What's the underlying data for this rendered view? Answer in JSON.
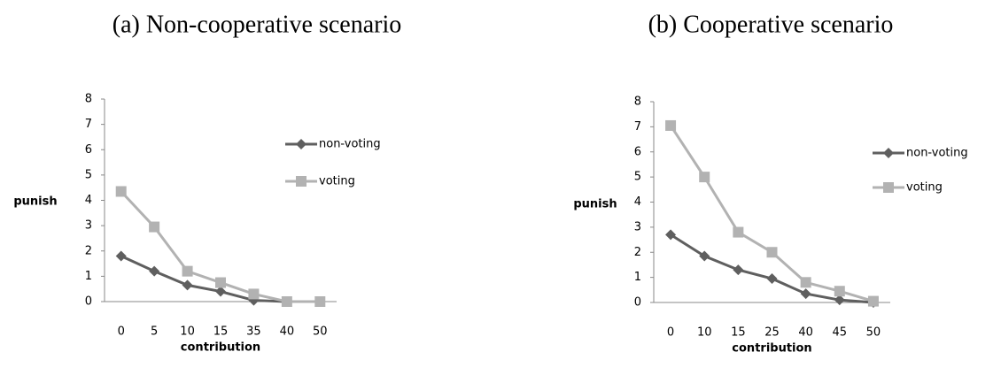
{
  "chart_data": [
    {
      "type": "line",
      "title": "(a) Non-cooperative scenario",
      "x_label": "contribution",
      "y_label": "punish",
      "categories": [
        "0",
        "5",
        "10",
        "15",
        "35",
        "40",
        "50"
      ],
      "ylim": [
        0,
        8
      ],
      "yticks": [
        0,
        1,
        2,
        3,
        4,
        5,
        6,
        7,
        8
      ],
      "series": [
        {
          "name": "non-voting",
          "color": "#5f5f5f",
          "marker": "diamond",
          "values": [
            1.8,
            1.2,
            0.65,
            0.4,
            0.05,
            0,
            0
          ]
        },
        {
          "name": "voting",
          "color": "#b2b2b2",
          "marker": "square",
          "values": [
            4.35,
            2.95,
            1.2,
            0.75,
            0.3,
            0,
            0
          ]
        }
      ]
    },
    {
      "type": "line",
      "title": "(b) Cooperative scenario",
      "x_label": "contribution",
      "y_label": "punish",
      "categories": [
        "0",
        "10",
        "15",
        "25",
        "40",
        "45",
        "50"
      ],
      "ylim": [
        0,
        8
      ],
      "yticks": [
        0,
        1,
        2,
        3,
        4,
        5,
        6,
        7,
        8
      ],
      "series": [
        {
          "name": "non-voting",
          "color": "#5f5f5f",
          "marker": "diamond",
          "values": [
            2.7,
            1.85,
            1.3,
            0.95,
            0.35,
            0.1,
            0
          ]
        },
        {
          "name": "voting",
          "color": "#b2b2b2",
          "marker": "square",
          "values": [
            7.05,
            5.0,
            2.8,
            2.0,
            0.8,
            0.45,
            0.05
          ]
        }
      ]
    }
  ]
}
